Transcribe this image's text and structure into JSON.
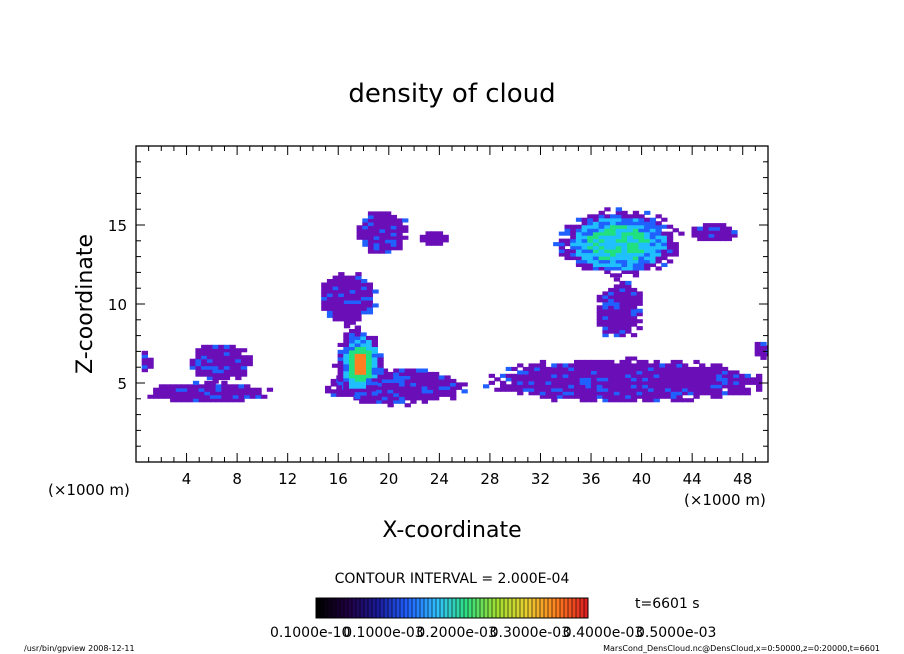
{
  "chart_data": {
    "type": "heatmap",
    "title": "density of cloud",
    "xlabel": "X-coordinate",
    "ylabel": "Z-coordinate",
    "x_unit": "(×1000 m)",
    "xlim": [
      0,
      50
    ],
    "ylim": [
      0,
      20
    ],
    "x_ticks": [
      4,
      8,
      12,
      16,
      20,
      24,
      28,
      32,
      36,
      40,
      44,
      48
    ],
    "y_ticks": [
      5,
      10,
      15
    ],
    "grid": false,
    "colormap": [
      "#200030",
      "#1a1a9a",
      "#2060ff",
      "#20c0ff",
      "#20e080",
      "#c0e030",
      "#ff8020",
      "#e02020"
    ],
    "contour_interval": "CONTOUR INTERVAL = 2.000E-04",
    "colorbar_labels": [
      "0.1000e-10",
      "0.1000e-03",
      "0.2000e-03",
      "0.3000e-03",
      "0.4000e-03",
      "0.5000e-03"
    ],
    "time_label": "t=6601 s",
    "regions": [
      {
        "x": [
          0,
          10.8
        ],
        "z": [
          3.6,
          5.0
        ],
        "density": "low"
      },
      {
        "x": [
          0,
          1.0
        ],
        "z": [
          5.5,
          7.0
        ],
        "density": "low"
      },
      {
        "x": [
          3.8,
          9.0
        ],
        "z": [
          5.0,
          7.5
        ],
        "density": "low"
      },
      {
        "x": [
          14.5,
          26.5
        ],
        "z": [
          3.5,
          5.8
        ],
        "density": "low"
      },
      {
        "x": [
          15.5,
          19.5
        ],
        "z": [
          3.8,
          8.5
        ],
        "density": "peak",
        "value": 0.00045
      },
      {
        "x": [
          14.2,
          18.8
        ],
        "z": [
          8.5,
          12.0
        ],
        "density": "low"
      },
      {
        "x": [
          17.0,
          21.5
        ],
        "z": [
          13.0,
          16.0
        ],
        "density": "low"
      },
      {
        "x": [
          22.0,
          24.5
        ],
        "z": [
          13.5,
          14.5
        ],
        "density": "low"
      },
      {
        "x": [
          27.0,
          50.0
        ],
        "z": [
          3.6,
          6.5
        ],
        "density": "low"
      },
      {
        "x": [
          33.0,
          43.0
        ],
        "z": [
          11.5,
          16.0
        ],
        "density": "medium",
        "value": 0.0003
      },
      {
        "x": [
          36.0,
          40.0
        ],
        "z": [
          7.5,
          11.5
        ],
        "density": "low"
      },
      {
        "x": [
          43.5,
          47.5
        ],
        "z": [
          13.8,
          15.0
        ],
        "density": "low"
      },
      {
        "x": [
          48.5,
          50.0
        ],
        "z": [
          6.5,
          7.5
        ],
        "density": "low"
      }
    ]
  },
  "footer": {
    "left": "/usr/bin/gpview   2008-12-11",
    "right": "MarsCond_DensCloud.nc@DensCloud,x=0:50000,z=0:20000,t=6601"
  }
}
